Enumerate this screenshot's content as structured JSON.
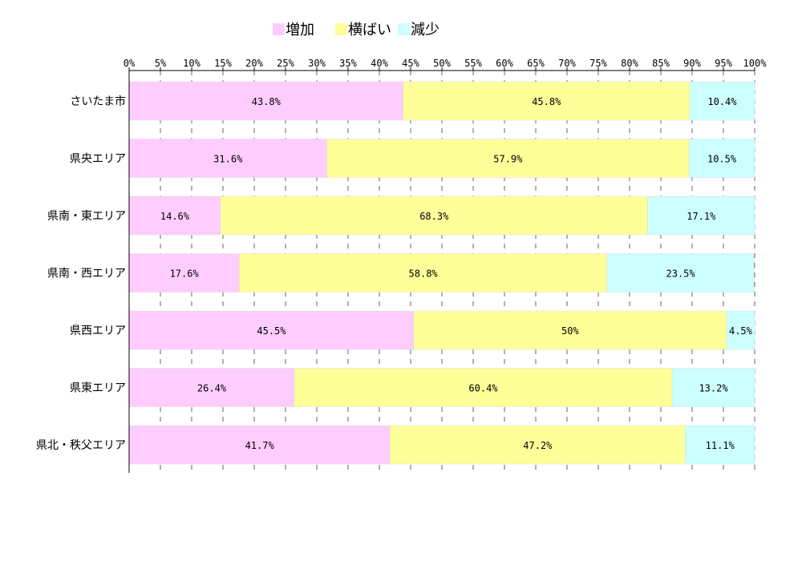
{
  "chart_data": {
    "type": "bar",
    "orientation": "horizontal",
    "stacked": true,
    "percent_stacked": true,
    "categories": [
      "さいたま市",
      "県央エリア",
      "県南・東エリア",
      "県南・西エリア",
      "県西エリア",
      "県東エリア",
      "県北・秩父エリア"
    ],
    "series": [
      {
        "name": "増加",
        "color": "#ffccff",
        "values": [
          43.8,
          31.6,
          14.6,
          17.6,
          45.5,
          26.4,
          41.7
        ],
        "labels": [
          "43.8%",
          "31.6%",
          "14.6%",
          "17.6%",
          "45.5%",
          "26.4%",
          "41.7%"
        ]
      },
      {
        "name": "横ばい",
        "color": "#ffff99",
        "values": [
          45.8,
          57.9,
          68.3,
          58.8,
          50,
          60.4,
          47.2
        ],
        "labels": [
          "45.8%",
          "57.9%",
          "68.3%",
          "58.8%",
          "50%",
          "60.4%",
          "47.2%"
        ]
      },
      {
        "name": "減少",
        "color": "#ccffff",
        "values": [
          10.4,
          10.5,
          17.1,
          23.5,
          4.5,
          13.2,
          11.1
        ],
        "labels": [
          "10.4%",
          "10.5%",
          "17.1%",
          "23.5%",
          "4.5%",
          "13.2%",
          "11.1%"
        ]
      }
    ],
    "x_ticks": [
      "0%",
      "5%",
      "10%",
      "15%",
      "20%",
      "25%",
      "30%",
      "35%",
      "40%",
      "45%",
      "50%",
      "55%",
      "60%",
      "65%",
      "70%",
      "75%",
      "80%",
      "85%",
      "90%",
      "95%",
      "100%"
    ],
    "xlim": [
      0,
      100
    ],
    "x_axis_position": "top",
    "grid": true,
    "legend_position": "top"
  }
}
